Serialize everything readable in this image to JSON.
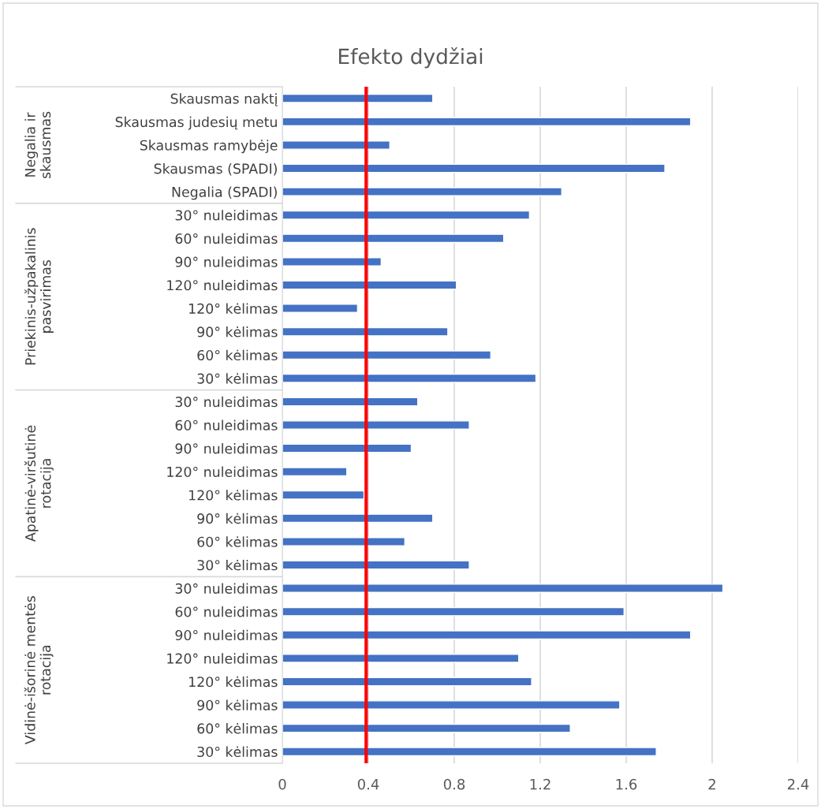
{
  "chart_data": {
    "type": "bar",
    "orientation": "horizontal",
    "title": "Efekto dydžiai",
    "categories": [
      "Skausmas naktį",
      "Skausmas judesių metu",
      "Skausmas ramybėje",
      "Skausmas (SPADI)",
      "Negalia (SPADI)",
      "30° nuleidimas",
      "60° nuleidimas",
      "90° nuleidimas",
      "120° nuleidimas",
      "120° kėlimas",
      "90° kėlimas",
      "60° kėlimas",
      "30° kėlimas",
      "30° nuleidimas",
      "60° nuleidimas",
      "90° nuleidimas",
      "120° nuleidimas",
      "120° kėlimas",
      "90° kėlimas",
      "60° kėlimas",
      "30° kėlimas",
      "30° nuleidimas",
      "60° nuleidimas",
      "90° nuleidimas",
      "120° nuleidimas",
      "120° kėlimas",
      "90° kėlimas",
      "60° kėlimas",
      "30° kėlimas"
    ],
    "values": [
      0.7,
      1.9,
      0.5,
      1.78,
      1.3,
      1.15,
      1.03,
      0.46,
      0.81,
      0.35,
      0.77,
      0.97,
      1.18,
      0.63,
      0.87,
      0.6,
      0.3,
      0.38,
      0.7,
      0.57,
      0.87,
      2.05,
      1.59,
      1.9,
      1.1,
      1.16,
      1.57,
      1.34,
      1.74
    ],
    "color": "#4472c4",
    "xlim": [
      0,
      2.4
    ],
    "xticks": [
      0,
      0.4,
      0.8,
      1.2,
      1.6,
      2,
      2.4
    ],
    "grid": "x",
    "ref_lines": [
      {
        "axis": "x",
        "value": 0.39,
        "color": "#ff0000"
      }
    ],
    "annotations": [
      "Negalia ir\nskausmas",
      "Priekinis-užpakalinis\npasvirimas",
      "Apatinė-viršutinė\nrotacija",
      "Vidinė-išorinė mentės\nrotacija"
    ]
  }
}
